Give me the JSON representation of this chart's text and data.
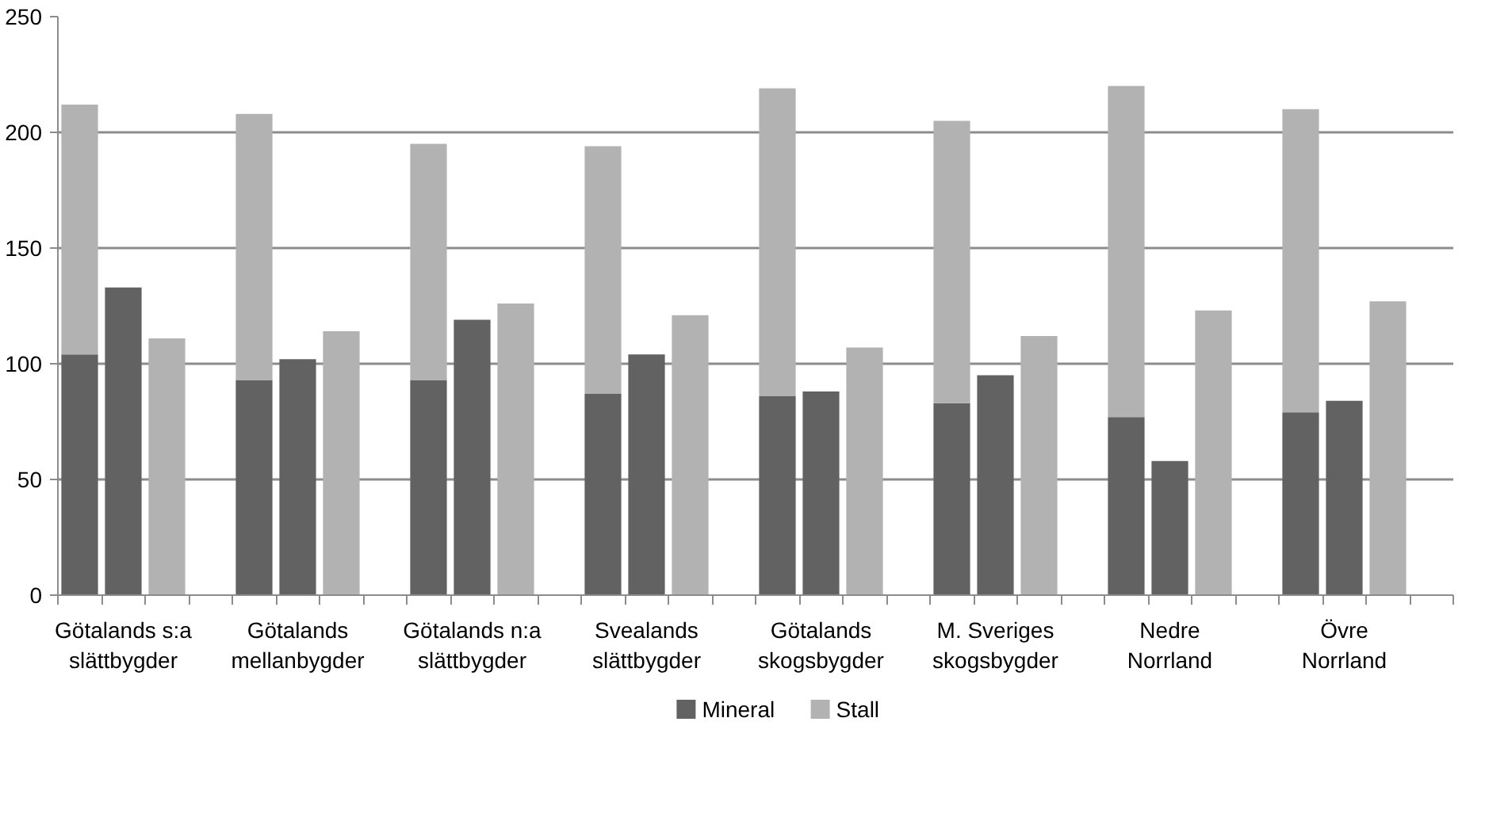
{
  "chart_data": {
    "type": "bar",
    "stacked": true,
    "categories": [
      null,
      "Götalands s:a\nslättbygder",
      null,
      null,
      null,
      "Götalands\nmellanbygder",
      null,
      null,
      null,
      "Götalands n:a\nslättbygder",
      null,
      null,
      null,
      "Svealands\nslättbygder",
      null,
      null,
      null,
      "Götalands\nskogsbygder",
      null,
      null,
      null,
      "M. Sveriges\nskogsbygder",
      null,
      null,
      null,
      "Nedre\nNorrland",
      null,
      null,
      null,
      "Övre\nNorrland",
      null,
      null
    ],
    "series": [
      {
        "name": "Mineral",
        "color": "#626262",
        "values": [
          104,
          133,
          null,
          null,
          93,
          102,
          null,
          null,
          93,
          119,
          null,
          null,
          87,
          104,
          null,
          null,
          86,
          88,
          null,
          null,
          83,
          95,
          null,
          null,
          77,
          58,
          null,
          null,
          79,
          84,
          null,
          null
        ]
      },
      {
        "name": "Stall",
        "color": "#b2b2b2",
        "values": [
          108,
          null,
          111,
          null,
          115,
          null,
          114,
          null,
          102,
          null,
          126,
          null,
          107,
          null,
          121,
          null,
          133,
          null,
          107,
          null,
          122,
          null,
          112,
          null,
          143,
          null,
          123,
          null,
          131,
          null,
          127,
          null
        ]
      }
    ],
    "ylim": [
      0,
      250
    ],
    "yticks": [
      0,
      50,
      100,
      150,
      200,
      250
    ],
    "grid": "y",
    "legend": "bottom"
  }
}
